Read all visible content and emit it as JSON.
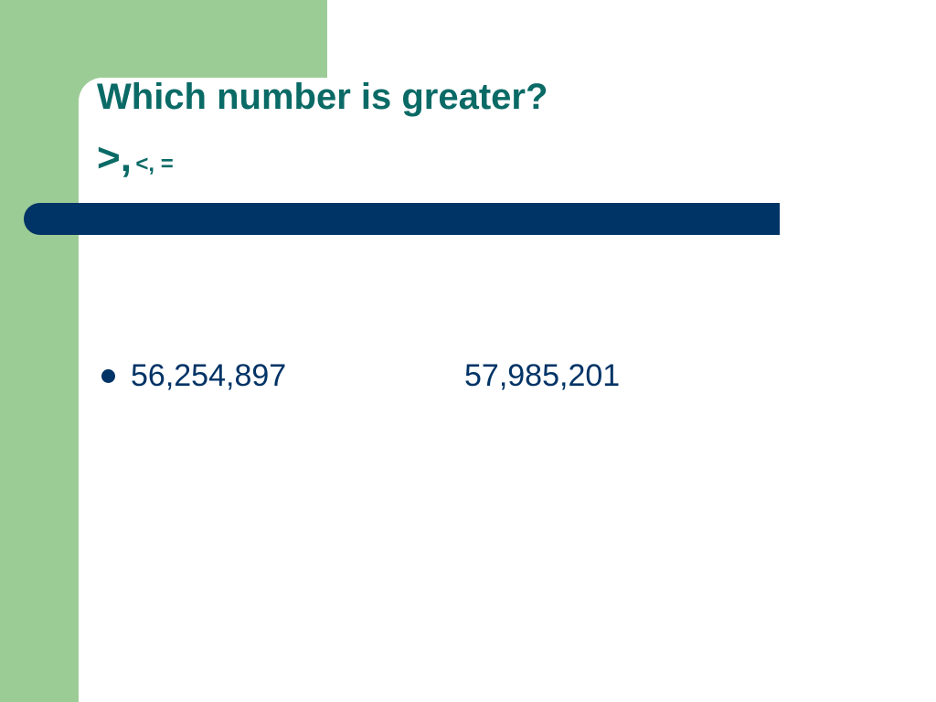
{
  "title": {
    "heading": "Which number is greater?",
    "symbols": [
      ">,",
      "<, ="
    ]
  },
  "bullets": [
    {
      "numbers": [
        "56,254,897",
        "57,985,201"
      ]
    }
  ]
}
